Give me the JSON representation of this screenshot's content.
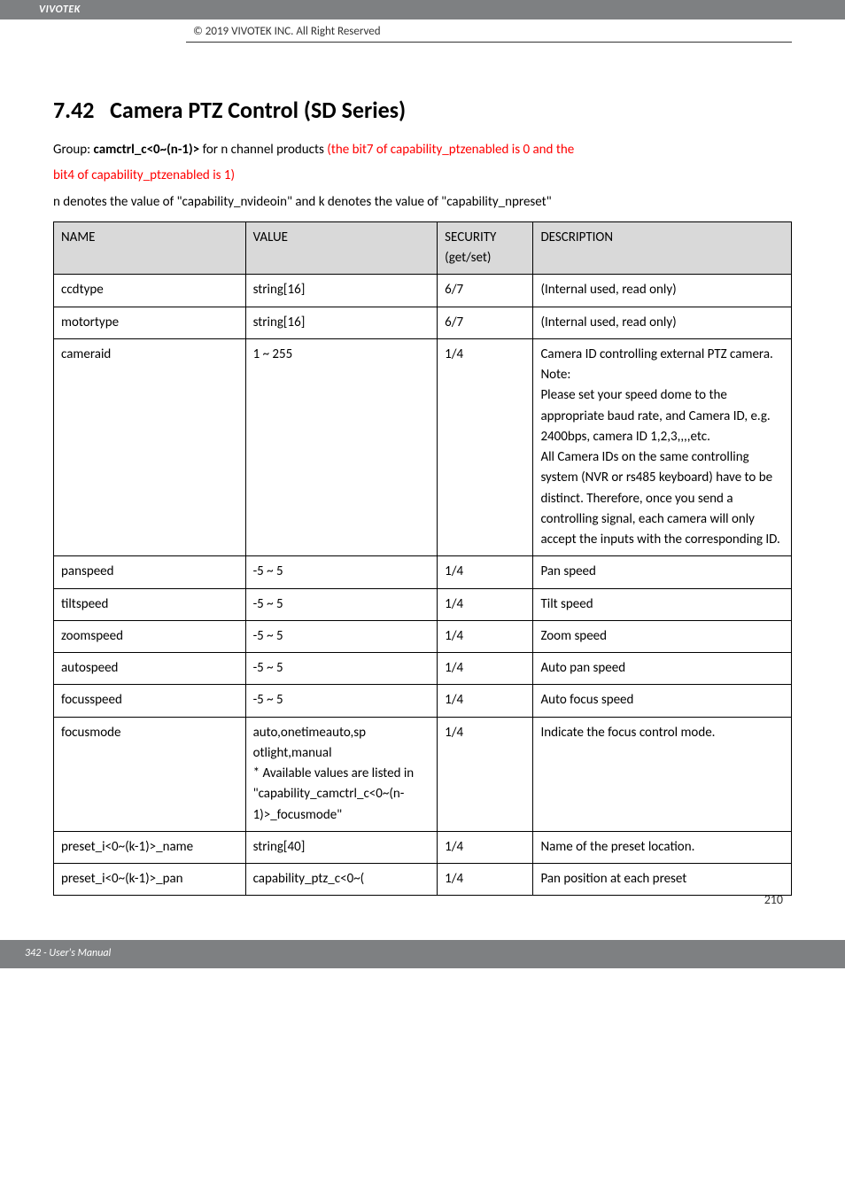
{
  "brand": "VIVOTEK",
  "copyright": "© 2019 VIVOTEK INC. All Right Reserved",
  "heading_num": "7.42",
  "heading_title": "Camera PTZ Control (SD Series)",
  "intro_group_prefix": "Group: ",
  "intro_group_name": "camctrl_c<0~(n-1)>",
  "intro_group_rest": " for n channel products ",
  "intro_red_1": "(the bit7 of capability_ptzenabled is 0 and the",
  "intro_red_2": "bit4 of capability_ptzenabled is 1)",
  "note": "n denotes the value of \"capability_nvideoin\" and k denotes the value of \"capability_npreset\"",
  "table": {
    "headers": [
      "NAME",
      "VALUE",
      "SECURITY (get/set)",
      "DESCRIPTION"
    ],
    "rows": [
      {
        "name": "ccdtype",
        "value": "string[16]",
        "sec": "6/7",
        "desc": "(Internal used, read only)"
      },
      {
        "name": "motortype",
        "value": "string[16]",
        "sec": "6/7",
        "desc": "(Internal used, read only)"
      },
      {
        "name": "cameraid",
        "value": "1 ~ 255",
        "sec": "1/4",
        "desc": "Camera ID controlling external PTZ camera.\nNote:\nPlease set your speed dome to the appropriate baud rate, and Camera ID, e.g. 2400bps, camera ID 1,2,3,,,,etc.\nAll Camera IDs on the same controlling system (NVR or rs485 keyboard) have to be distinct. Therefore, once you send a controlling signal, each camera will only accept the inputs with the corresponding ID."
      },
      {
        "name": "panspeed",
        "value": "-5 ~ 5",
        "sec": "1/4",
        "desc": "Pan speed"
      },
      {
        "name": "tiltspeed",
        "value": "-5 ~ 5",
        "sec": "1/4",
        "desc": "Tilt speed"
      },
      {
        "name": "zoomspeed",
        "value": "-5 ~ 5",
        "sec": "1/4",
        "desc": "Zoom speed"
      },
      {
        "name": "autospeed",
        "value": "-5 ~ 5",
        "sec": "1/4",
        "desc": "Auto pan speed"
      },
      {
        "name": "focusspeed",
        "value": "-5 ~ 5",
        "sec": "1/4",
        "desc": "Auto focus speed"
      },
      {
        "name": "focusmode",
        "value": "auto,onetimeauto,sp\notlight,manual\n* Available values are listed in \"capability_camctrl_c<0~(n-1)>_focusmode\"",
        "sec": "1/4",
        "desc": "Indicate the focus control mode."
      },
      {
        "name": "preset_i<0~(k-1)>_name",
        "value": "string[40]",
        "sec": "1/4",
        "desc": "Name of the preset location."
      },
      {
        "name": "preset_i<0~(k-1)>_pan",
        "value": "capability_ptz_c<0~(",
        "sec": "1/4",
        "desc": "Pan position at each preset"
      }
    ]
  },
  "page_number": "210",
  "footer": "342 - User's Manual",
  "colors": {
    "band": "#7e8082",
    "header_bg": "#d9d9d9",
    "red": "#ff0000"
  }
}
